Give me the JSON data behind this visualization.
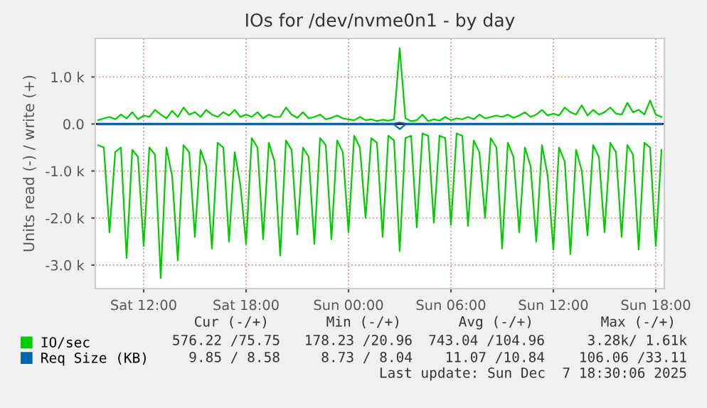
{
  "chart_data": {
    "type": "line",
    "title": "IOs for /dev/nvme0n1 - by day",
    "ylabel": "Units read (-) / write (+)",
    "x": [
      "2025-12-06T09:20",
      "2025-12-06T09:40",
      "2025-12-06T10:00",
      "2025-12-06T10:20",
      "2025-12-06T10:40",
      "2025-12-06T11:00",
      "2025-12-06T11:20",
      "2025-12-06T11:40",
      "2025-12-06T12:00",
      "2025-12-06T12:20",
      "2025-12-06T12:40",
      "2025-12-06T13:00",
      "2025-12-06T13:20",
      "2025-12-06T13:40",
      "2025-12-06T14:00",
      "2025-12-06T14:20",
      "2025-12-06T14:40",
      "2025-12-06T15:00",
      "2025-12-06T15:20",
      "2025-12-06T15:40",
      "2025-12-06T16:00",
      "2025-12-06T16:20",
      "2025-12-06T16:40",
      "2025-12-06T17:00",
      "2025-12-06T17:20",
      "2025-12-06T17:40",
      "2025-12-06T18:00",
      "2025-12-06T18:20",
      "2025-12-06T18:40",
      "2025-12-06T19:00",
      "2025-12-06T19:20",
      "2025-12-06T19:40",
      "2025-12-06T20:00",
      "2025-12-06T20:20",
      "2025-12-06T20:40",
      "2025-12-06T21:00",
      "2025-12-06T21:20",
      "2025-12-06T21:40",
      "2025-12-06T22:00",
      "2025-12-06T22:20",
      "2025-12-06T22:40",
      "2025-12-06T23:00",
      "2025-12-06T23:20",
      "2025-12-06T23:40",
      "2025-12-07T00:00",
      "2025-12-07T00:20",
      "2025-12-07T00:40",
      "2025-12-07T01:00",
      "2025-12-07T01:20",
      "2025-12-07T01:40",
      "2025-12-07T02:00",
      "2025-12-07T02:20",
      "2025-12-07T02:40",
      "2025-12-07T03:00",
      "2025-12-07T03:20",
      "2025-12-07T03:40",
      "2025-12-07T04:00",
      "2025-12-07T04:20",
      "2025-12-07T04:40",
      "2025-12-07T05:00",
      "2025-12-07T05:20",
      "2025-12-07T05:40",
      "2025-12-07T06:00",
      "2025-12-07T06:20",
      "2025-12-07T06:40",
      "2025-12-07T07:00",
      "2025-12-07T07:20",
      "2025-12-07T07:40",
      "2025-12-07T08:00",
      "2025-12-07T08:20",
      "2025-12-07T08:40",
      "2025-12-07T09:00",
      "2025-12-07T09:20",
      "2025-12-07T09:40",
      "2025-12-07T10:00",
      "2025-12-07T10:20",
      "2025-12-07T10:40",
      "2025-12-07T11:00",
      "2025-12-07T11:20",
      "2025-12-07T11:40",
      "2025-12-07T12:00",
      "2025-12-07T12:20",
      "2025-12-07T12:40",
      "2025-12-07T13:00",
      "2025-12-07T13:20",
      "2025-12-07T13:40",
      "2025-12-07T14:00",
      "2025-12-07T14:20",
      "2025-12-07T14:40",
      "2025-12-07T15:00",
      "2025-12-07T15:20",
      "2025-12-07T15:40",
      "2025-12-07T16:00",
      "2025-12-07T16:20",
      "2025-12-07T16:40",
      "2025-12-07T17:00",
      "2025-12-07T17:20",
      "2025-12-07T17:40",
      "2025-12-07T18:00",
      "2025-12-07T18:20"
    ],
    "series": [
      {
        "name": "IO/sec",
        "color": "#00cc00",
        "values": [
          80,
          120,
          150,
          100,
          200,
          120,
          250,
          100,
          180,
          150,
          300,
          200,
          120,
          280,
          150,
          350,
          200,
          250,
          150,
          300,
          200,
          150,
          250,
          180,
          300,
          150,
          200,
          150,
          250,
          120,
          200,
          150,
          150,
          350,
          200,
          130,
          250,
          120,
          150,
          200,
          100,
          130,
          180,
          120,
          100,
          80,
          150,
          80,
          100,
          60,
          90,
          70,
          100,
          1610,
          120,
          60,
          80,
          200,
          60,
          100,
          70,
          150,
          80,
          120,
          100,
          150,
          100,
          200,
          120,
          150,
          180,
          150,
          200,
          130,
          180,
          250,
          150,
          200,
          300,
          180,
          220,
          180,
          350,
          250,
          200,
          400,
          180,
          300,
          200,
          250,
          350,
          220,
          200,
          450,
          250,
          300,
          200,
          500,
          200,
          150
        ]
      },
      {
        "color": "#00cc00",
        "values": [
          -450,
          -500,
          -2300,
          -600,
          -500,
          -2850,
          -550,
          -700,
          -2600,
          -500,
          -650,
          -3280,
          -500,
          -1100,
          -2900,
          -450,
          -600,
          -2400,
          -550,
          -900,
          -2650,
          -400,
          -500,
          -2500,
          -600,
          -1300,
          -2550,
          -300,
          -500,
          -2450,
          -400,
          -800,
          -2800,
          -350,
          -550,
          -2350,
          -500,
          -700,
          -2550,
          -300,
          -450,
          -2450,
          -350,
          -600,
          -2300,
          -250,
          -500,
          -2000,
          -300,
          -400,
          -2400,
          -250,
          -350,
          -2700,
          -300,
          -250,
          -2200,
          -200,
          -250,
          -2100,
          -250,
          -300,
          -2150,
          -200,
          -250,
          -2170,
          -350,
          -600,
          -2000,
          -300,
          -500,
          -2650,
          -400,
          -700,
          -2300,
          -500,
          -900,
          -2500,
          -450,
          -1100,
          -2670,
          -500,
          -800,
          -2770,
          -550,
          -1000,
          -2370,
          -450,
          -700,
          -2300,
          -400,
          -600,
          -2400,
          -450,
          -650,
          -2670,
          -400,
          -500,
          -2600,
          -550
        ]
      },
      {
        "name": "Req Size (KB)",
        "color": "#0066b3",
        "values": [
          10,
          10,
          10,
          10,
          10,
          10,
          10,
          10,
          10,
          10,
          10,
          10,
          10,
          10,
          10,
          10,
          10,
          10,
          10,
          10,
          10,
          10,
          10,
          10,
          10,
          10,
          10,
          10,
          10,
          10,
          10,
          10,
          10,
          10,
          10,
          10,
          10,
          10,
          10,
          10,
          10,
          10,
          10,
          10,
          10,
          10,
          10,
          10,
          10,
          10,
          10,
          10,
          10,
          30,
          10,
          10,
          10,
          10,
          10,
          10,
          10,
          10,
          10,
          10,
          10,
          10,
          10,
          10,
          10,
          10,
          10,
          10,
          10,
          10,
          10,
          10,
          10,
          10,
          10,
          10,
          10,
          10,
          10,
          10,
          10,
          10,
          10,
          10,
          10,
          10,
          10,
          10,
          10,
          10,
          10,
          10,
          10,
          10,
          10,
          10
        ]
      },
      {
        "color": "#0066b3",
        "values": [
          -10,
          -10,
          -10,
          -10,
          -10,
          -10,
          -10,
          -10,
          -10,
          -10,
          -10,
          -10,
          -10,
          -10,
          -10,
          -10,
          -10,
          -10,
          -10,
          -10,
          -10,
          -10,
          -10,
          -10,
          -10,
          -10,
          -10,
          -10,
          -10,
          -10,
          -10,
          -10,
          -10,
          -10,
          -10,
          -10,
          -10,
          -10,
          -10,
          -10,
          -10,
          -10,
          -10,
          -10,
          -10,
          -10,
          -10,
          -10,
          -10,
          -10,
          -10,
          -10,
          -10,
          -110,
          -10,
          -10,
          -10,
          -10,
          -10,
          -10,
          -10,
          -10,
          -10,
          -10,
          -10,
          -10,
          -10,
          -10,
          -10,
          -10,
          -10,
          -10,
          -10,
          -10,
          -10,
          -10,
          -10,
          -10,
          -10,
          -10,
          -10,
          -10,
          -10,
          -10,
          -10,
          -10,
          -10,
          -10,
          -10,
          -10,
          -10,
          -10,
          -10,
          -10,
          -10,
          -10,
          -10,
          -10,
          -10,
          -10
        ]
      }
    ],
    "xlim": [
      "2025-12-06T09:10",
      "2025-12-07T18:30"
    ],
    "xticks": [
      {
        "value": "2025-12-06T12:00",
        "label": "Sat 12:00"
      },
      {
        "value": "2025-12-06T18:00",
        "label": "Sat 18:00"
      },
      {
        "value": "2025-12-07T00:00",
        "label": "Sun 00:00"
      },
      {
        "value": "2025-12-07T06:00",
        "label": "Sun 06:00"
      },
      {
        "value": "2025-12-07T12:00",
        "label": "Sun 12:00"
      },
      {
        "value": "2025-12-07T18:00",
        "label": "Sun 18:00"
      }
    ],
    "ylim": [
      -3500,
      1820
    ],
    "yticks": [
      {
        "value": 1000,
        "label": "1.0 k"
      },
      {
        "value": 0,
        "label": "0.0"
      },
      {
        "value": -1000,
        "label": "-1.0 k"
      },
      {
        "value": -2000,
        "label": "-2.0 k"
      },
      {
        "value": -3000,
        "label": "-3.0 k"
      }
    ],
    "ref_lines": [
      {
        "axis": "y",
        "value": 0,
        "color": "#000000"
      }
    ],
    "grid": true,
    "legend": "bottom",
    "annotations": [
      "Cur (-/+)",
      "Min (-/+)",
      "Avg (-/+)",
      "Max (-/+)",
      "576.22 /75.75",
      "178.23 /20.96",
      "743.04 /104.96",
      "3.28k/ 1.61k",
      "9.85 / 8.58",
      "8.73 / 8.04",
      "11.07 /10.84",
      "106.06 /33.11",
      "Last update: Sun Dec  7 18:30:06 2025"
    ]
  }
}
